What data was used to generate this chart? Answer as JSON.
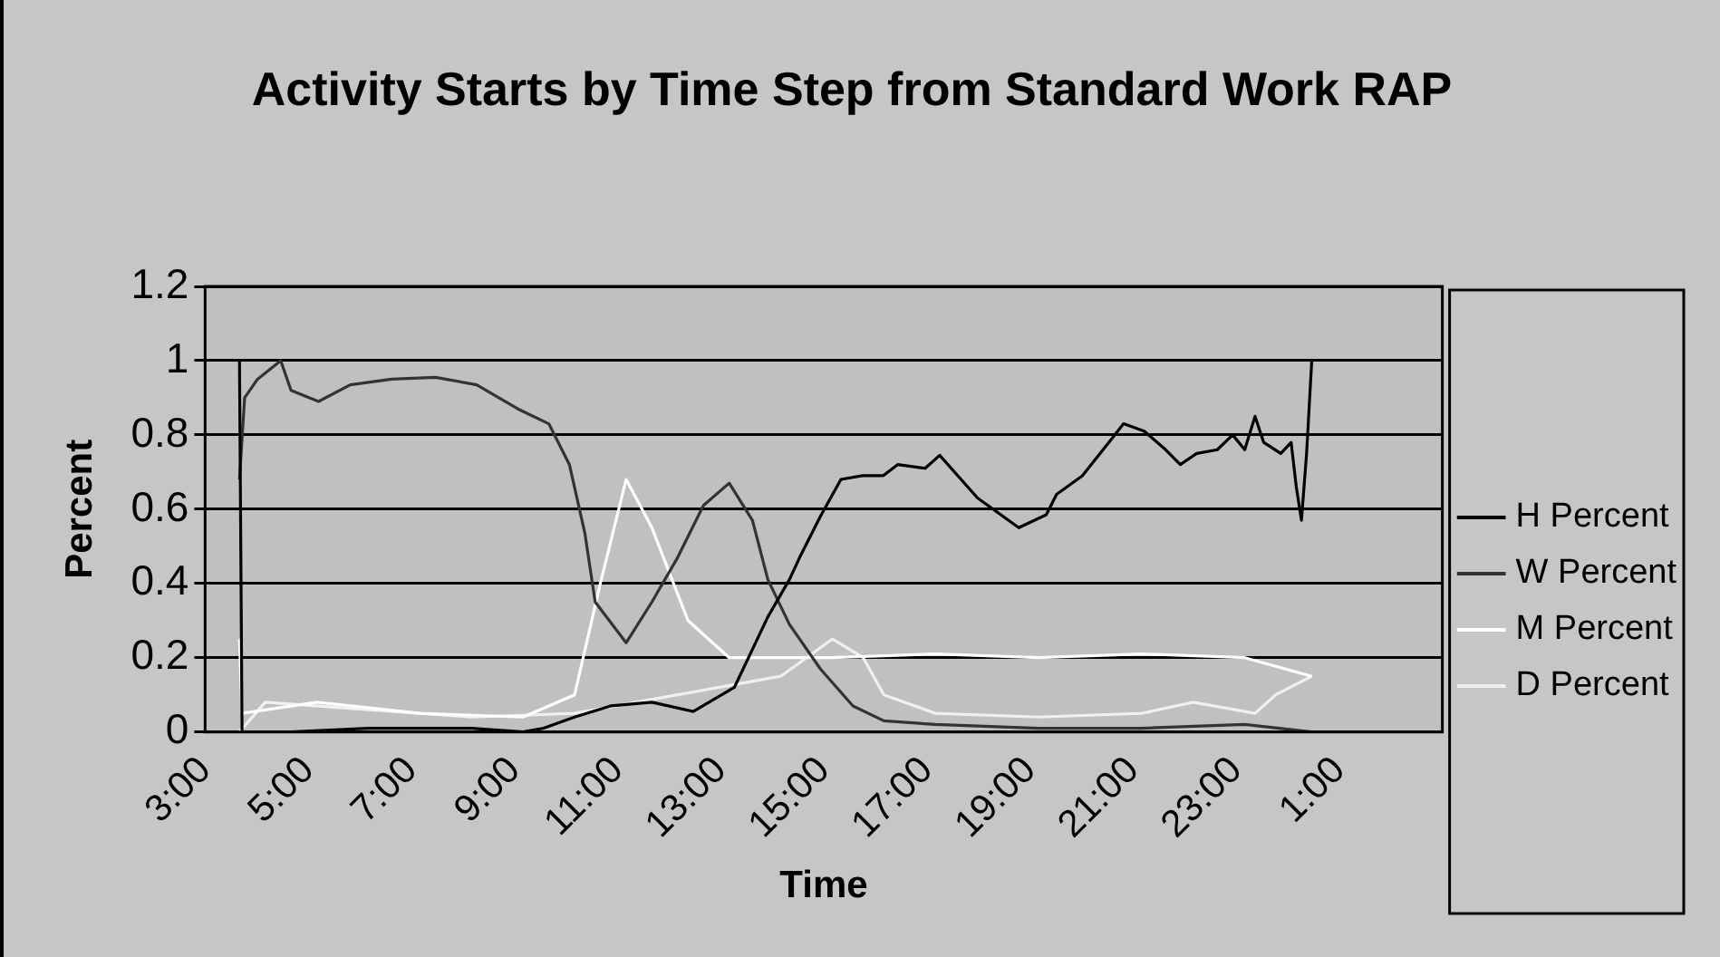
{
  "chart_data": {
    "type": "line",
    "title": "Activity Starts by Time Step from Standard Work RAP",
    "xlabel": "Time",
    "ylabel": "Percent",
    "xlim": [
      "2000-01-01T03:00",
      "2000-01-02T03:00"
    ],
    "xticks": [
      {
        "value": "2000-01-01T03:00",
        "label": "3:00"
      },
      {
        "value": "2000-01-01T05:00",
        "label": "5:00"
      },
      {
        "value": "2000-01-01T07:00",
        "label": "7:00"
      },
      {
        "value": "2000-01-01T09:00",
        "label": "9:00"
      },
      {
        "value": "2000-01-01T11:00",
        "label": "11:00"
      },
      {
        "value": "2000-01-01T13:00",
        "label": "13:00"
      },
      {
        "value": "2000-01-01T15:00",
        "label": "15:00"
      },
      {
        "value": "2000-01-01T17:00",
        "label": "17:00"
      },
      {
        "value": "2000-01-01T19:00",
        "label": "19:00"
      },
      {
        "value": "2000-01-01T21:00",
        "label": "21:00"
      },
      {
        "value": "2000-01-01T23:00",
        "label": "23:00"
      },
      {
        "value": "2000-01-02T01:00",
        "label": "1:00"
      }
    ],
    "ylim": [
      0,
      1.2
    ],
    "yticks": [
      0,
      0.2,
      0.4,
      0.6,
      0.8,
      1,
      1.2
    ],
    "grid": "y",
    "legend": "right",
    "marker": "none",
    "line_style": "solid",
    "series": [
      {
        "name": "H Percent",
        "color": "#000000",
        "x": [
          "2000-01-01T03:40",
          "2000-01-01T03:43",
          "2000-01-01T04:40",
          "2000-01-01T06:10",
          "2000-01-01T07:10",
          "2000-01-01T08:10",
          "2000-01-01T09:10",
          "2000-01-01T09:34",
          "2000-01-01T10:10",
          "2000-01-01T10:52",
          "2000-01-01T11:40",
          "2000-01-01T12:28",
          "2000-01-01T13:16",
          "2000-01-01T13:55",
          "2000-01-01T14:20",
          "2000-01-01T14:32",
          "2000-01-01T14:56",
          "2000-01-01T15:20",
          "2000-01-01T15:45",
          "2000-01-01T16:09",
          "2000-01-01T16:26",
          "2000-01-01T16:58",
          "2000-01-01T17:15",
          "2000-01-01T17:59",
          "2000-01-01T18:47",
          "2000-01-01T19:19",
          "2000-01-01T19:31",
          "2000-01-01T20:01",
          "2000-01-01T20:32",
          "2000-01-01T20:49",
          "2000-01-01T21:13",
          "2000-01-01T21:38",
          "2000-01-01T21:55",
          "2000-01-01T22:14",
          "2000-01-01T22:38",
          "2000-01-01T22:56",
          "2000-01-01T23:10",
          "2000-01-01T23:22",
          "2000-01-01T23:32",
          "2000-01-01T23:52",
          "2000-01-02T00:04",
          "2000-01-02T00:10",
          "2000-01-02T00:16",
          "2000-01-02T00:22",
          "2000-01-02T00:28"
        ],
        "values": [
          1,
          0,
          0,
          0.01,
          0.01,
          0.01,
          0,
          0.01,
          0.04,
          0.07,
          0.08,
          0.055,
          0.12,
          0.31,
          0.41,
          0.47,
          0.58,
          0.68,
          0.69,
          0.69,
          0.72,
          0.71,
          0.745,
          0.63,
          0.55,
          0.585,
          0.64,
          0.69,
          0.78,
          0.83,
          0.81,
          0.76,
          0.72,
          0.75,
          0.76,
          0.8,
          0.76,
          0.85,
          0.78,
          0.75,
          0.78,
          0.66,
          0.57,
          0.75,
          1
        ]
      },
      {
        "name": "W Percent",
        "color": "#333333",
        "x": [
          "2000-01-01T03:40",
          "2000-01-01T03:46",
          "2000-01-01T04:01",
          "2000-01-01T04:28",
          "2000-01-01T04:40",
          "2000-01-01T05:12",
          "2000-01-01T05:49",
          "2000-01-01T06:37",
          "2000-01-01T07:28",
          "2000-01-01T08:16",
          "2000-01-01T09:04",
          "2000-01-01T09:40",
          "2000-01-01T10:04",
          "2000-01-01T10:22",
          "2000-01-01T10:34",
          "2000-01-01T11:10",
          "2000-01-01T11:40",
          "2000-01-01T12:10",
          "2000-01-01T12:40",
          "2000-01-01T13:10",
          "2000-01-01T13:37",
          "2000-01-01T13:55",
          "2000-01-01T14:20",
          "2000-01-01T14:56",
          "2000-01-01T15:34",
          "2000-01-01T16:10",
          "2000-01-01T17:10",
          "2000-01-01T19:10",
          "2000-01-01T21:10",
          "2000-01-01T23:10",
          "2000-01-02T00:28"
        ],
        "values": [
          0.68,
          0.9,
          0.95,
          1,
          0.92,
          0.89,
          0.935,
          0.95,
          0.955,
          0.935,
          0.87,
          0.83,
          0.72,
          0.535,
          0.35,
          0.24,
          0.35,
          0.47,
          0.61,
          0.67,
          0.57,
          0.41,
          0.29,
          0.17,
          0.07,
          0.03,
          0.02,
          0.01,
          0.01,
          0.02,
          0
        ]
      },
      {
        "name": "M Percent",
        "color": "#ffffff",
        "x": [
          "2000-01-01T03:40",
          "2000-01-01T03:43",
          "2000-01-01T05:10",
          "2000-01-01T07:10",
          "2000-01-01T09:10",
          "2000-01-01T10:10",
          "2000-01-01T10:40",
          "2000-01-01T11:10",
          "2000-01-01T11:40",
          "2000-01-01T12:22",
          "2000-01-01T13:10",
          "2000-01-01T15:10",
          "2000-01-01T17:10",
          "2000-01-01T19:10",
          "2000-01-01T21:10",
          "2000-01-01T23:10",
          "2000-01-02T00:28"
        ],
        "values": [
          0.25,
          0.05,
          0.08,
          0.05,
          0.04,
          0.1,
          0.4,
          0.68,
          0.55,
          0.3,
          0.2,
          0.2,
          0.21,
          0.2,
          0.21,
          0.2,
          0.15
        ]
      },
      {
        "name": "D Percent",
        "color": "#f0f0f0",
        "x": [
          "2000-01-01T03:40",
          "2000-01-01T04:10",
          "2000-01-01T06:10",
          "2000-01-01T08:10",
          "2000-01-01T10:10",
          "2000-01-01T12:10",
          "2000-01-01T14:10",
          "2000-01-01T15:10",
          "2000-01-01T15:46",
          "2000-01-01T16:10",
          "2000-01-01T17:10",
          "2000-01-01T19:10",
          "2000-01-01T21:10",
          "2000-01-01T22:10",
          "2000-01-01T23:22",
          "2000-01-01T23:46",
          "2000-01-02T00:28"
        ],
        "values": [
          0,
          0.08,
          0.06,
          0.04,
          0.05,
          0.1,
          0.15,
          0.25,
          0.2,
          0.1,
          0.05,
          0.04,
          0.05,
          0.08,
          0.05,
          0.1,
          0.15
        ]
      }
    ]
  }
}
